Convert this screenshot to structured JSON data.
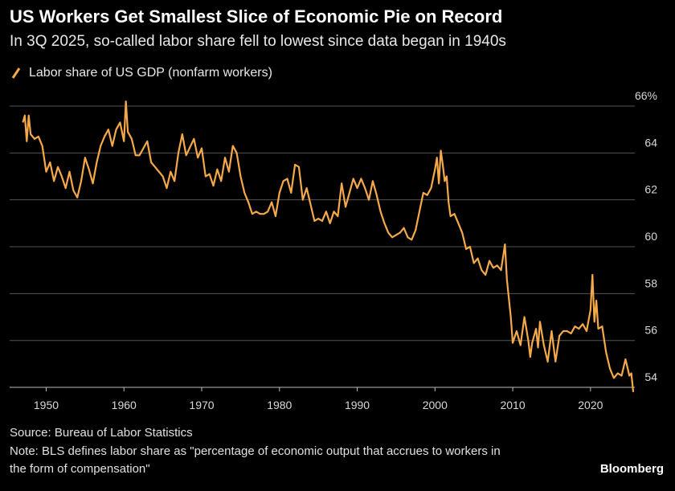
{
  "chart_data": {
    "type": "line",
    "title": "US Workers Get Smallest Slice of Economic Pie on Record",
    "subtitle": "In 3Q 2025, so-called labor share fell to lowest since data began in 1940s",
    "source": "Source: Bureau of Labor Statistics",
    "note": [
      "Note: BLS defines labor share as \"percentage of economic output that accrues to workers in",
      "the form of compensation\""
    ],
    "brand": "Bloomberg",
    "x": [
      1947,
      1947.25,
      1947.5,
      1947.75,
      1948,
      1948.5,
      1949,
      1949.5,
      1950,
      1950.5,
      1951,
      1951.5,
      1952,
      1952.5,
      1953,
      1953.5,
      1954,
      1954.5,
      1955,
      1955.5,
      1956,
      1956.5,
      1957,
      1957.5,
      1958,
      1958.5,
      1959,
      1959.5,
      1960,
      1960.25,
      1960.5,
      1961,
      1961.5,
      1962,
      1963,
      1963.5,
      1964,
      1965,
      1965.5,
      1966,
      1966.5,
      1967,
      1967.5,
      1968,
      1969,
      1969.5,
      1970,
      1970.5,
      1971,
      1971.5,
      1972,
      1972.5,
      1973,
      1973.5,
      1974,
      1974.5,
      1975,
      1975.5,
      1976,
      1976.5,
      1977,
      1977.5,
      1978,
      1978.5,
      1979,
      1979.5,
      1980,
      1980.5,
      1981,
      1981.5,
      1982,
      1982.5,
      1983,
      1983.5,
      1984,
      1984.5,
      1985,
      1985.5,
      1986,
      1986.5,
      1987,
      1987.5,
      1988,
      1988.5,
      1989,
      1989.5,
      1990,
      1990.5,
      1991,
      1991.5,
      1992,
      1992.5,
      1993,
      1993.5,
      1994,
      1994.5,
      1995,
      1995.5,
      1996,
      1996.5,
      1997,
      1997.5,
      1998,
      1998.5,
      1999,
      1999.5,
      2000,
      2000.25,
      2000.5,
      2000.75,
      2001,
      2001.25,
      2001.5,
      2001.75,
      2002,
      2002.5,
      2003,
      2003.5,
      2004,
      2004.5,
      2005,
      2005.5,
      2006,
      2006.5,
      2007,
      2007.5,
      2008,
      2008.5,
      2009,
      2009.25,
      2009.5,
      2009.75,
      2010,
      2010.5,
      2011,
      2011.5,
      2012,
      2012.25,
      2012.5,
      2013,
      2013.25,
      2013.5,
      2014,
      2014.5,
      2015,
      2015.5,
      2016,
      2016.5,
      2017,
      2017.5,
      2018,
      2018.5,
      2019,
      2019.5,
      2020,
      2020.25,
      2020.5,
      2020.75,
      2021,
      2021.5,
      2022,
      2022.5,
      2023,
      2023.5,
      2024,
      2024.5,
      2025,
      2025.25,
      2025.5
    ],
    "series": [
      {
        "name": "Labor share of US GDP (nonfarm workers)",
        "color": "#f5a94a",
        "values": [
          65.3,
          65.6,
          64.5,
          65.6,
          64.8,
          64.6,
          64.7,
          64.3,
          63.2,
          63.6,
          62.8,
          63.4,
          63.0,
          62.5,
          63.2,
          62.4,
          62.1,
          62.8,
          63.8,
          63.3,
          62.7,
          63.6,
          64.3,
          64.7,
          65.0,
          64.3,
          65.0,
          65.3,
          64.5,
          66.2,
          64.9,
          64.6,
          63.9,
          63.9,
          64.5,
          63.6,
          63.4,
          63.0,
          62.5,
          63.2,
          62.8,
          64.0,
          64.8,
          63.9,
          64.6,
          63.8,
          64.2,
          63.0,
          63.1,
          62.6,
          63.3,
          62.8,
          63.8,
          63.2,
          64.3,
          64.0,
          63.0,
          62.3,
          61.9,
          61.4,
          61.5,
          61.4,
          61.4,
          61.5,
          61.9,
          61.3,
          62.3,
          62.8,
          62.9,
          62.3,
          63.5,
          63.4,
          62.0,
          62.5,
          61.8,
          61.1,
          61.2,
          61.1,
          61.5,
          61.0,
          61.5,
          61.3,
          62.7,
          61.7,
          62.3,
          62.9,
          62.5,
          62.9,
          62.5,
          62.0,
          62.8,
          62.2,
          61.5,
          61.0,
          60.6,
          60.4,
          60.5,
          60.6,
          60.8,
          60.4,
          60.3,
          60.7,
          61.5,
          62.3,
          62.2,
          62.5,
          63.3,
          63.8,
          62.7,
          64.1,
          63.5,
          62.8,
          63.0,
          61.9,
          61.3,
          61.4,
          61.0,
          60.6,
          59.9,
          60.0,
          59.3,
          59.5,
          59.0,
          58.8,
          59.4,
          59.1,
          59.2,
          59.0,
          60.1,
          58.6,
          57.8,
          57.0,
          55.9,
          56.4,
          55.8,
          57.0,
          56.0,
          55.3,
          55.9,
          56.5,
          55.7,
          56.8,
          55.8,
          55.1,
          56.4,
          55.1,
          56.2,
          56.4,
          56.4,
          56.3,
          56.6,
          56.5,
          56.7,
          56.4,
          57.3,
          58.8,
          56.8,
          57.7,
          56.5,
          56.6,
          55.5,
          54.8,
          54.4,
          54.6,
          54.5,
          55.2,
          54.5,
          54.6,
          53.8
        ]
      }
    ],
    "xlim": [
      1945.3,
      2025.7
    ],
    "xticks": [
      1950,
      1960,
      1970,
      1980,
      1990,
      2000,
      2010,
      2020
    ],
    "ylim": [
      53.6,
      66.6
    ],
    "yticks": [
      54,
      56,
      58,
      60,
      62,
      64,
      {
        "value": 66,
        "label": "66%"
      }
    ],
    "grid": true
  }
}
